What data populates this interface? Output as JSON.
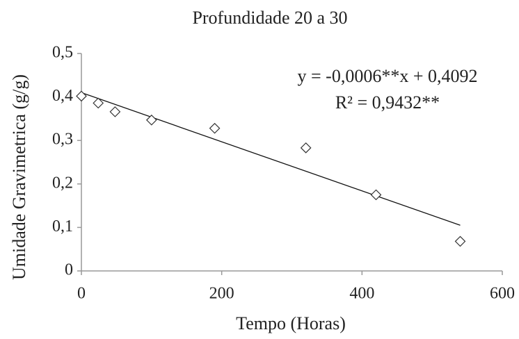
{
  "chart_data": {
    "type": "scatter",
    "title": "Profundidade 20 a 30",
    "xlabel": "Tempo (Horas)",
    "ylabel": "Umidade Gravimetrica  (g/g)",
    "annotations": [
      "y = -0,0006**x + 0,4092",
      "R² = 0,9432**"
    ],
    "x": [
      0,
      24,
      48,
      100,
      190,
      320,
      420,
      540
    ],
    "values": [
      0.402,
      0.386,
      0.366,
      0.347,
      0.328,
      0.283,
      0.175,
      0.068
    ],
    "color": "#333333",
    "trendline": {
      "x": [
        0,
        540
      ],
      "values": [
        0.41,
        0.105
      ],
      "color": "#111111"
    },
    "xlim": [
      0,
      600
    ],
    "ylim": [
      0,
      0.5
    ],
    "xticks": [
      0,
      200,
      400,
      600
    ],
    "yticks": [
      0,
      {
        "value": 0.1,
        "label": "0,1"
      },
      {
        "value": 0.2,
        "label": "0,2"
      },
      {
        "value": 0.3,
        "label": "0,3"
      },
      {
        "value": 0.4,
        "label": "0,4"
      },
      {
        "value": 0.5,
        "label": "0,5"
      }
    ],
    "grid": false
  }
}
